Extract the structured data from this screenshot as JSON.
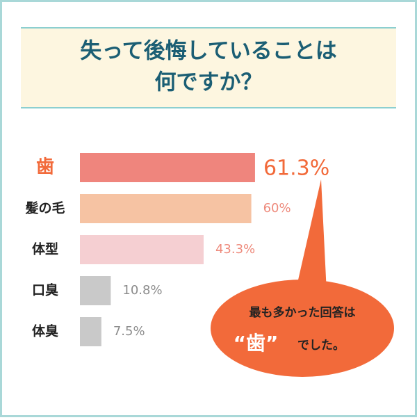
{
  "chart_data": {
    "type": "hbar",
    "title": [
      "失って後悔していることは",
      "何ですか？"
    ],
    "categories": [
      "歯",
      "髪の毛",
      "体型",
      "口臭",
      "体臭"
    ],
    "values": [
      61.3,
      60,
      43.3,
      10.8,
      7.5
    ],
    "value_labels": [
      "61.3%",
      "60%",
      "43.3%",
      "10.8%",
      "7.5%"
    ],
    "colors": [
      "#ef857d",
      "#f6c3a3",
      "#f5cfd2",
      "#c9c9c9",
      "#c9c9c9"
    ],
    "label_colors": [
      "#f26a3a",
      "#ee8a7c",
      "#ee8a7c",
      "#8c8c8c",
      "#8c8c8c"
    ],
    "annotation": {
      "line1": "最も多かった回答は",
      "highlight": "“歯”",
      "line2": "でした。",
      "color": "#f26a3a"
    }
  }
}
